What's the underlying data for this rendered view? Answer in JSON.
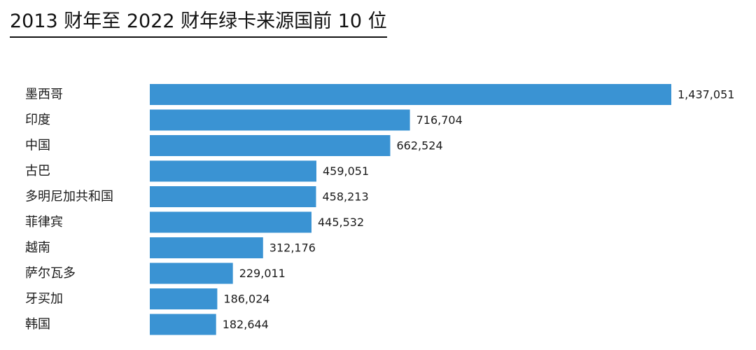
{
  "chart_data": {
    "type": "bar",
    "orientation": "horizontal",
    "title": "2013 财年至 2022 财年绿卡来源国前 10 位",
    "categories": [
      "墨西哥",
      "印度",
      "中国",
      "古巴",
      "多明尼加共和国",
      "菲律宾",
      "越南",
      "萨尔瓦多",
      "牙买加",
      "韩国"
    ],
    "values": [
      1437051,
      716704,
      662524,
      459051,
      458213,
      445532,
      312176,
      229011,
      186024,
      182644
    ],
    "value_labels": [
      "1,437,051",
      "716,704",
      "662,524",
      "459,051",
      "458,213",
      "445,532",
      "312,176",
      "229,011",
      "186,024",
      "182,644"
    ],
    "xlabel": "",
    "ylabel": "",
    "xlim": [
      0,
      1437051
    ],
    "grid": false,
    "bar_color": "#3a93d3"
  }
}
